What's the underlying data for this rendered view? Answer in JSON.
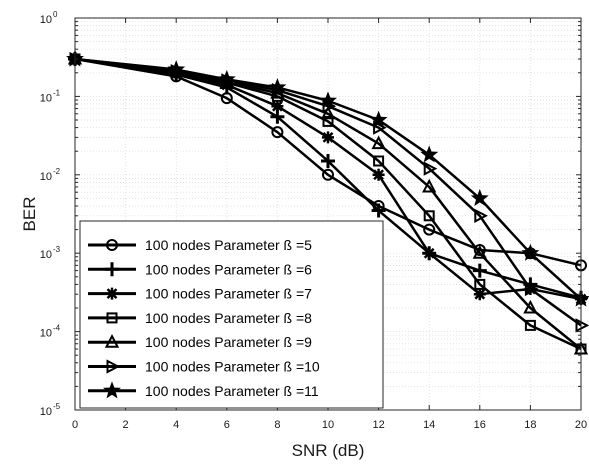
{
  "chart_data": {
    "type": "line",
    "title": "",
    "xlabel": "SNR (dB)",
    "ylabel": "BER",
    "xlim": [
      0,
      20
    ],
    "ylim": [
      1e-05,
      1
    ],
    "yscale": "log",
    "grid": true,
    "legend_position": "bottom-left",
    "x_ticks": [
      "0",
      "2",
      "4",
      "6",
      "8",
      "10",
      "12",
      "14",
      "16",
      "18",
      "20"
    ],
    "y_ticks": [
      {
        "base": "10",
        "exp": "0"
      },
      {
        "base": "10",
        "exp": "-1"
      },
      {
        "base": "10",
        "exp": "-2"
      },
      {
        "base": "10",
        "exp": "-3"
      },
      {
        "base": "10",
        "exp": "-4"
      },
      {
        "base": "10",
        "exp": "-5"
      }
    ],
    "x": [
      0,
      4,
      6,
      8,
      10,
      12,
      14,
      16,
      18,
      20
    ],
    "series": [
      {
        "name": "100 nodes  Parameter ß =5",
        "marker": "circle",
        "values": [
          0.3,
          0.18,
          0.095,
          0.035,
          0.01,
          0.004,
          0.002,
          0.0011,
          0.001,
          0.0007
        ]
      },
      {
        "name": "100 nodes  Parameter ß =6",
        "marker": "plus",
        "values": [
          0.3,
          0.19,
          0.13,
          0.055,
          0.015,
          0.0035,
          0.001,
          0.0006,
          0.0004,
          0.00027
        ]
      },
      {
        "name": "100 nodes  Parameter ß =7",
        "marker": "asterisk",
        "values": [
          0.3,
          0.2,
          0.14,
          0.075,
          0.03,
          0.01,
          0.001,
          0.0003,
          0.00035,
          0.00026
        ]
      },
      {
        "name": "100 nodes  Parameter ß =8",
        "marker": "square",
        "values": [
          0.3,
          0.2,
          0.15,
          0.1,
          0.048,
          0.015,
          0.003,
          0.0004,
          0.00012,
          6e-05
        ]
      },
      {
        "name": "100 nodes  Parameter ß =9",
        "marker": "triangle-up",
        "values": [
          0.3,
          0.21,
          0.155,
          0.11,
          0.06,
          0.025,
          0.007,
          0.001,
          0.0002,
          6e-05
        ]
      },
      {
        "name": "100 nodes  Parameter ß =10",
        "marker": "triangle-right",
        "values": [
          0.3,
          0.21,
          0.16,
          0.12,
          0.075,
          0.04,
          0.012,
          0.003,
          0.00035,
          0.00012
        ]
      },
      {
        "name": "100 nodes  Parameter ß =11",
        "marker": "star",
        "values": [
          0.3,
          0.22,
          0.165,
          0.13,
          0.088,
          0.05,
          0.018,
          0.005,
          0.001,
          0.00026
        ]
      }
    ]
  }
}
